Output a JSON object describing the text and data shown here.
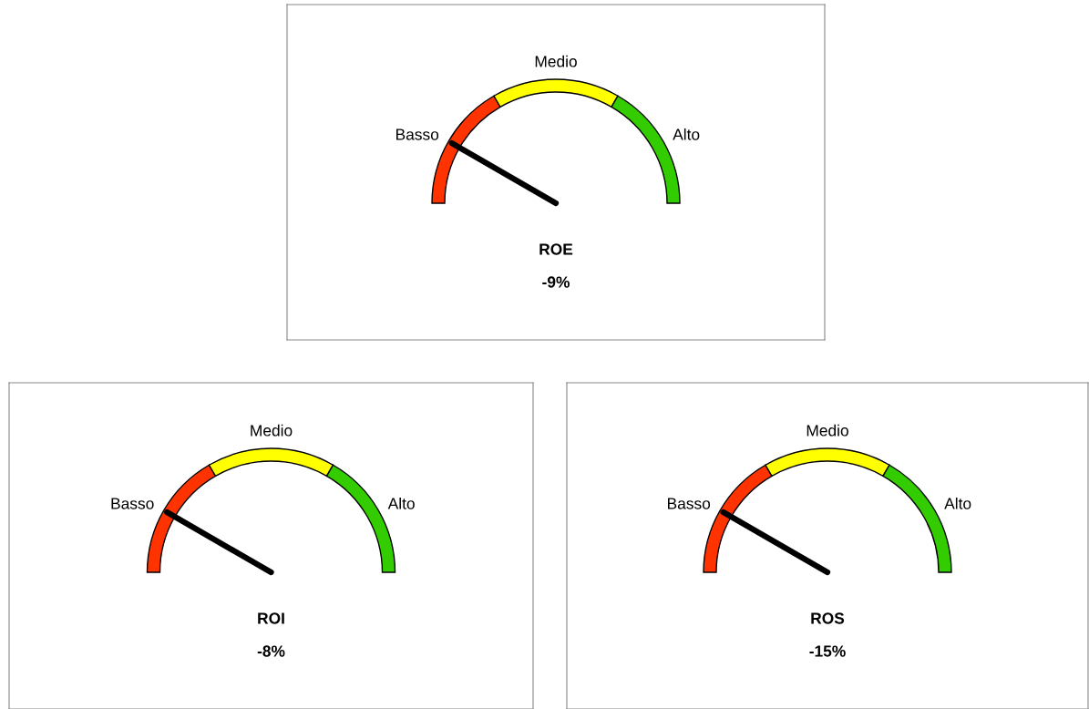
{
  "chart_data": [
    {
      "type": "donut",
      "title": "ROE",
      "subtitle": "-9%",
      "categories": [
        "Basso",
        "Medio",
        "Alto"
      ],
      "values": [
        33.33,
        33.34,
        33.33
      ],
      "colors": [
        "#ff3300",
        "#ffff00",
        "#33cc00"
      ],
      "needle": "Basso"
    },
    {
      "type": "donut",
      "title": "ROI",
      "subtitle": "-8%",
      "categories": [
        "Basso",
        "Medio",
        "Alto"
      ],
      "values": [
        33.33,
        33.34,
        33.33
      ],
      "colors": [
        "#ff3300",
        "#ffff00",
        "#33cc00"
      ],
      "needle": "Basso"
    },
    {
      "type": "donut",
      "title": "ROS",
      "subtitle": "-15%",
      "categories": [
        "Basso",
        "Medio",
        "Alto"
      ],
      "values": [
        33.33,
        33.34,
        33.33
      ],
      "colors": [
        "#ff3300",
        "#ffff00",
        "#33cc00"
      ],
      "needle": "Basso"
    }
  ]
}
